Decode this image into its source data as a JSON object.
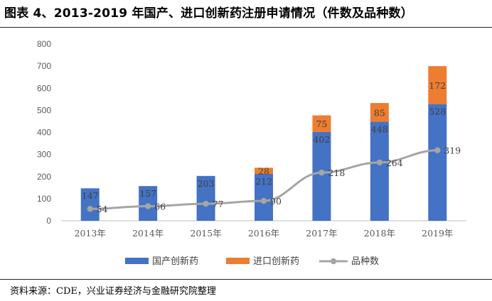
{
  "title": "图表 4、2013-2019 年国产、进口创新药注册申请情况（件数及品种数）",
  "source": "资料来源：CDE，兴业证券经济与金融研究院整理",
  "colors": {
    "domestic": "#4472C4",
    "imported": "#ED7D31",
    "varieties": "#A5A5A5"
  },
  "chart_data": {
    "type": "bar",
    "stacked": true,
    "categories": [
      "2013年",
      "2014年",
      "2015年",
      "2016年",
      "2017年",
      "2018年",
      "2019年"
    ],
    "series": [
      {
        "name": "国产创新药",
        "kind": "bar",
        "values": [
          147,
          157,
          203,
          212,
          402,
          448,
          528
        ]
      },
      {
        "name": "进口创新药",
        "kind": "bar",
        "values": [
          null,
          null,
          null,
          28,
          75,
          85,
          172
        ]
      },
      {
        "name": "品种数",
        "kind": "line",
        "values": [
          54,
          66,
          77,
          90,
          218,
          264,
          319
        ]
      }
    ],
    "ylim": [
      0,
      800
    ],
    "yticks": [
      0,
      100,
      200,
      300,
      400,
      500,
      600,
      700,
      800
    ],
    "grid": false,
    "legend": "bottom"
  }
}
